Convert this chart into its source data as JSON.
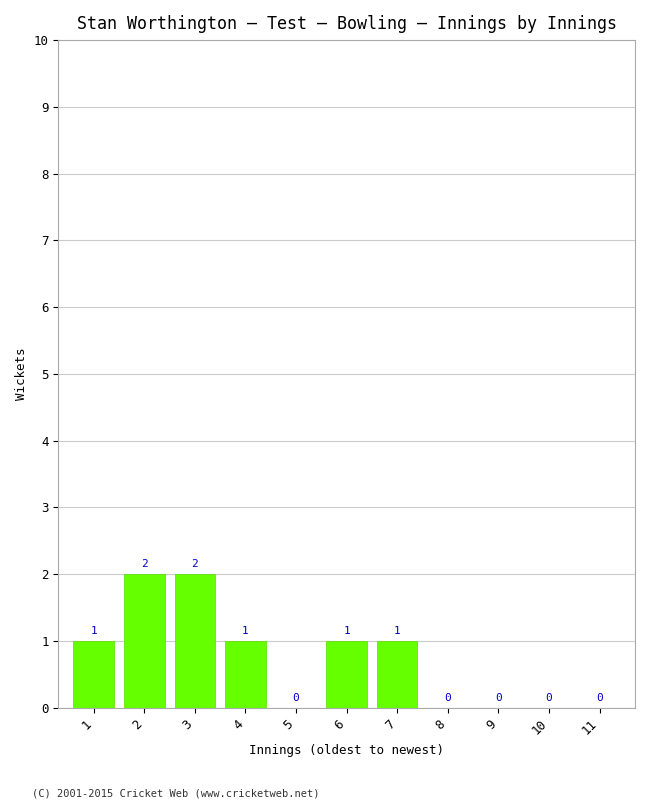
{
  "title": "Stan Worthington – Test – Bowling – Innings by Innings",
  "xlabel": "Innings (oldest to newest)",
  "ylabel": "Wickets",
  "innings": [
    1,
    2,
    3,
    4,
    5,
    6,
    7,
    8,
    9,
    10,
    11
  ],
  "wickets": [
    1,
    2,
    2,
    1,
    0,
    1,
    1,
    0,
    0,
    0,
    0
  ],
  "bar_color": "#66ff00",
  "bar_edge_color": "#55dd00",
  "label_color": "#0000cc",
  "ylim": [
    0,
    10
  ],
  "yticks": [
    0,
    1,
    2,
    3,
    4,
    5,
    6,
    7,
    8,
    9,
    10
  ],
  "xticks": [
    1,
    2,
    3,
    4,
    5,
    6,
    7,
    8,
    9,
    10,
    11
  ],
  "background_color": "#ffffff",
  "plot_bg_color": "#ffffff",
  "grid_color": "#cccccc",
  "title_fontsize": 12,
  "axis_fontsize": 9,
  "label_fontsize": 8,
  "tick_fontsize": 9,
  "footer": "(C) 2001-2015 Cricket Web (www.cricketweb.net)"
}
